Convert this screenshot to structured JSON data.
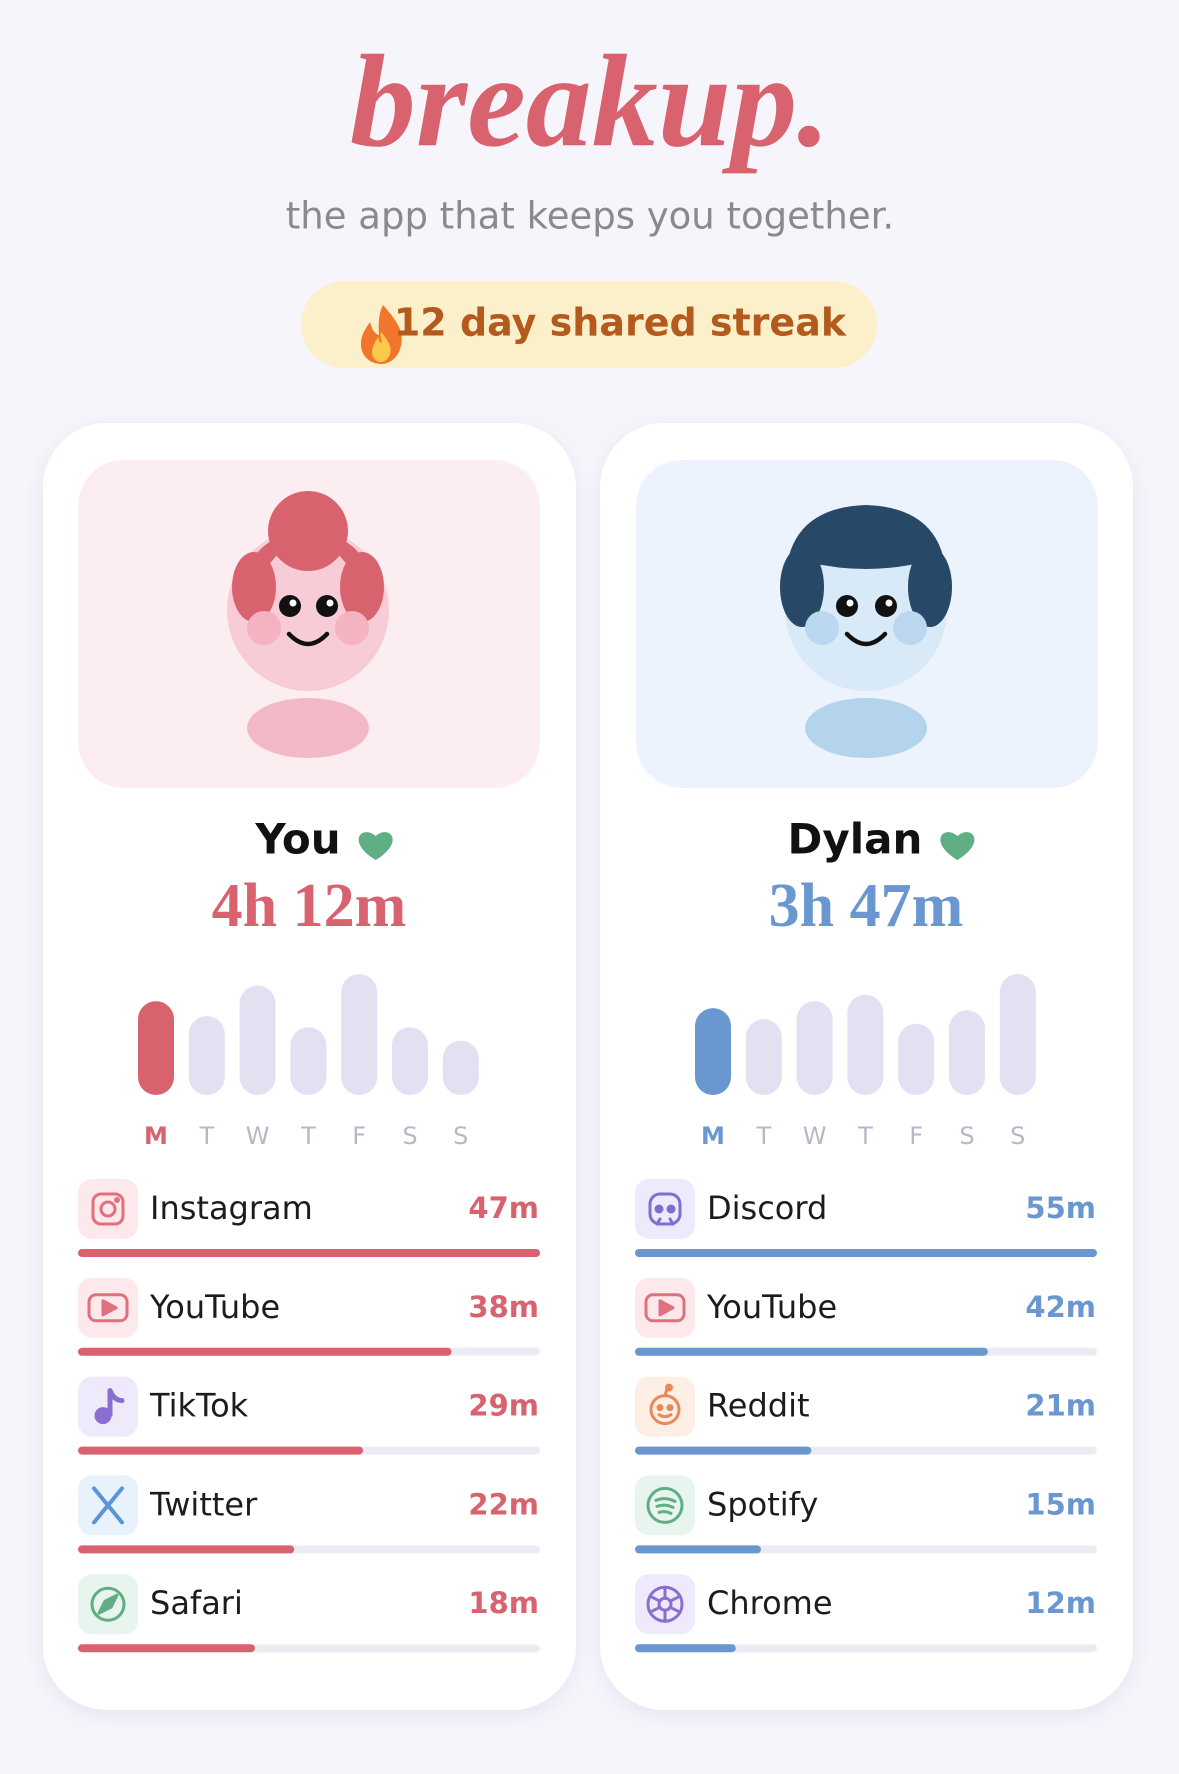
{
  "header": {
    "title": "breakup.",
    "subtitle": "the app that keeps you together.",
    "streak": "12 day shared streak"
  },
  "profiles": [
    {
      "name": "You",
      "total": "4h 12m",
      "color": "#d9626f",
      "days": [
        "M",
        "T",
        "W",
        "T",
        "F",
        "S",
        "S"
      ],
      "week_minutes": [
        252,
        212,
        294,
        182,
        325,
        182,
        146
      ],
      "apps": [
        {
          "name": "Instagram",
          "minutes": 47,
          "label": "47m"
        },
        {
          "name": "YouTube",
          "minutes": 38,
          "label": "38m"
        },
        {
          "name": "TikTok",
          "minutes": 29,
          "label": "29m"
        },
        {
          "name": "Twitter",
          "minutes": 22,
          "label": "22m"
        },
        {
          "name": "Safari",
          "minutes": 18,
          "label": "18m"
        }
      ]
    },
    {
      "name": "Dylan",
      "total": "3h 47m",
      "color": "#6a97cf",
      "days": [
        "M",
        "T",
        "W",
        "T",
        "F",
        "S",
        "S"
      ],
      "week_minutes": [
        227,
        198,
        245,
        262,
        186,
        221,
        316
      ],
      "apps": [
        {
          "name": "Discord",
          "minutes": 55,
          "label": "55m"
        },
        {
          "name": "YouTube",
          "minutes": 42,
          "label": "42m"
        },
        {
          "name": "Reddit",
          "minutes": 21,
          "label": "21m"
        },
        {
          "name": "Spotify",
          "minutes": 15,
          "label": "15m"
        },
        {
          "name": "Chrome",
          "minutes": 12,
          "label": "12m"
        }
      ]
    }
  ]
}
